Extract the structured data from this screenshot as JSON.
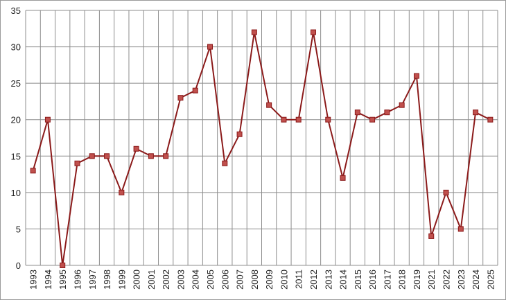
{
  "chart_data": {
    "type": "line",
    "categories": [
      "1993",
      "1994",
      "1995",
      "1996",
      "1997",
      "1998",
      "1999",
      "2000",
      "2001",
      "2002",
      "2003",
      "2004",
      "2005",
      "2006",
      "2007",
      "2008",
      "2009",
      "2010",
      "2011",
      "2012",
      "2013",
      "2014",
      "2015",
      "2016",
      "2017",
      "2018",
      "2019",
      "2021",
      "2022",
      "2023",
      "2024",
      "2025"
    ],
    "series": [
      {
        "color": "#8b1a1a",
        "marker_color": "#c0504d",
        "values": [
          13,
          20,
          0,
          14,
          15,
          15,
          10,
          16,
          15,
          15,
          23,
          24,
          30,
          14,
          18,
          32,
          22,
          20,
          20,
          32,
          20,
          12,
          21,
          20,
          21,
          22,
          26,
          4,
          10,
          5,
          21,
          20
        ]
      }
    ],
    "ylim": [
      0,
      35
    ],
    "yticks": [
      0,
      5,
      10,
      15,
      20,
      25,
      30,
      35
    ],
    "grid": true
  }
}
